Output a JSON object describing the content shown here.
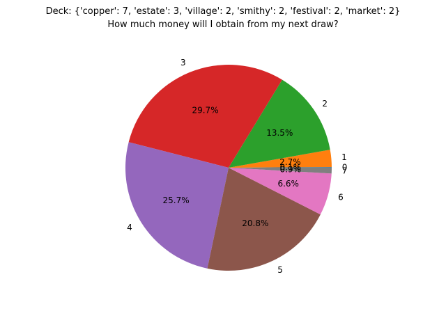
{
  "chart_data": {
    "type": "pie",
    "title": "Deck: {'copper': 7, 'estate': 3, 'village': 2, 'smithy': 2, 'festival': 2, 'market': 2}",
    "subtitle": "How much money will I obtain from my next draw?",
    "slices": [
      {
        "label": "0",
        "value": 0.1,
        "pct_text": "0.1%",
        "color": "#1f77b4"
      },
      {
        "label": "1",
        "value": 2.7,
        "pct_text": "2.7%",
        "color": "#ff7f0e"
      },
      {
        "label": "2",
        "value": 13.5,
        "pct_text": "13.5%",
        "color": "#2ca02c"
      },
      {
        "label": "3",
        "value": 29.7,
        "pct_text": "29.7%",
        "color": "#d62728"
      },
      {
        "label": "4",
        "value": 25.7,
        "pct_text": "25.7%",
        "color": "#9467bd"
      },
      {
        "label": "5",
        "value": 20.8,
        "pct_text": "20.8%",
        "color": "#8c564b"
      },
      {
        "label": "6",
        "value": 6.6,
        "pct_text": "6.6%",
        "color": "#e377c2"
      },
      {
        "label": "7",
        "value": 0.9,
        "pct_text": "0.9%",
        "color": "#7f7f7f"
      }
    ]
  }
}
